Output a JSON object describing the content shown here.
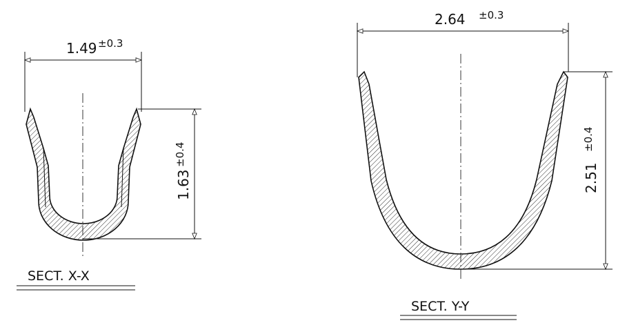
{
  "section_x": {
    "width_value": "1.49",
    "width_tol": "±0.3",
    "height_value": "1.63",
    "height_tol": "±0.4",
    "label": "SECT. X-X"
  },
  "section_y": {
    "width_value": "2.64",
    "width_tol": "±0.3",
    "height_value": "2.51",
    "height_tol": "±0.4",
    "label": "SECT. Y-Y"
  }
}
